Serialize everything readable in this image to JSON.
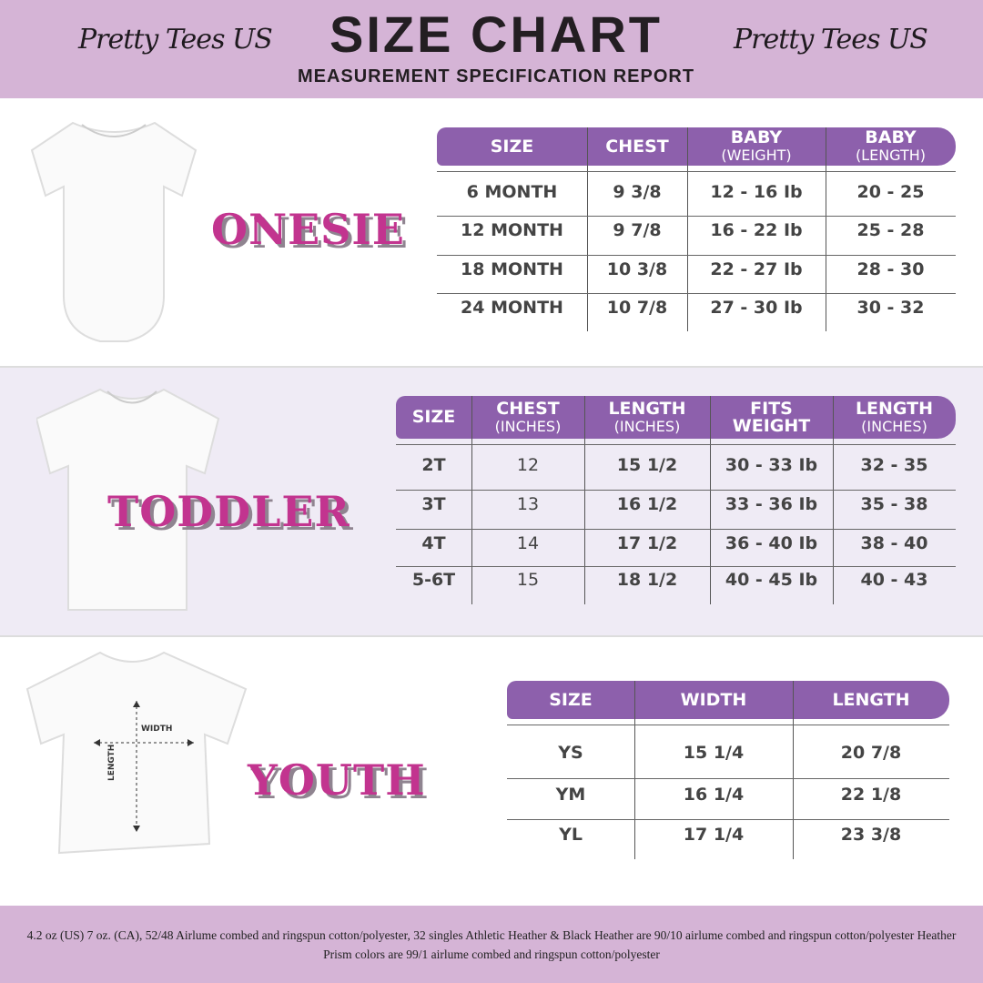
{
  "header": {
    "brand_left": "Pretty Tees US",
    "brand_right": "Pretty Tees US",
    "title": "SIZE CHART",
    "subtitle": "MEASUREMENT SPECIFICATION REPORT"
  },
  "onesie": {
    "label": "ONESIE",
    "columns": [
      {
        "main": "SIZE",
        "sub": ""
      },
      {
        "main": "CHEST",
        "sub": ""
      },
      {
        "main": "BABY",
        "sub": "(WEIGHT)"
      },
      {
        "main": "BABY",
        "sub": "(LENGTH)"
      }
    ],
    "rows": [
      [
        "6 MONTH",
        "9 3/8",
        "12 - 16 Ib",
        "20 - 25"
      ],
      [
        "12 MONTH",
        "9 7/8",
        "16 - 22 Ib",
        "25 - 28"
      ],
      [
        "18  MONTH",
        "10 3/8",
        "22 - 27 Ib",
        "28 - 30"
      ],
      [
        "24 MONTH",
        "10 7/8",
        "27 - 30 Ib",
        "30 - 32"
      ]
    ]
  },
  "toddler": {
    "label": "TODDLER",
    "columns": [
      {
        "main": "SIZE",
        "sub": ""
      },
      {
        "main": "CHEST",
        "sub": "(INCHES)"
      },
      {
        "main": "LENGTH",
        "sub": "(INCHES)"
      },
      {
        "main": "FITS",
        "sub": "WEIGHT"
      },
      {
        "main": "LENGTH",
        "sub": "(INCHES)"
      }
    ],
    "rows": [
      [
        "2T",
        "12",
        "15 1/2",
        "30 - 33  Ib",
        "32 - 35"
      ],
      [
        "3T",
        "13",
        "16 1/2",
        "33 - 36 Ib",
        "35 - 38"
      ],
      [
        "4T",
        "14",
        "17 1/2",
        "36 - 40 Ib",
        "38 - 40"
      ],
      [
        "5-6T",
        "15",
        "18 1/2",
        "40 - 45 Ib",
        "40 - 43"
      ]
    ]
  },
  "youth": {
    "label": "YOUTH",
    "diagram_width": "WIDTH",
    "diagram_length": "LENGTH",
    "columns": [
      {
        "main": "SIZE",
        "sub": ""
      },
      {
        "main": "WIDTH",
        "sub": ""
      },
      {
        "main": "LENGTH",
        "sub": ""
      }
    ],
    "rows": [
      [
        "YS",
        "15 1/4",
        "20 7/8"
      ],
      [
        "YM",
        "16 1/4",
        "22 1/8"
      ],
      [
        "YL",
        "17 1/4",
        "23 3/8"
      ]
    ]
  },
  "footer": {
    "text": "4.2 oz (US) 7 oz. (CA), 52/48 Airlume combed and ringspun cotton/polyester, 32 singles Athletic Heather & Black Heather are 90/10 airlume combed and ringspun cotton/polyester Heather Prism colors are 99/1 airlume combed and ringspun cotton/polyester"
  },
  "colors": {
    "header_bg": "#d5b4d6",
    "table_header": "#8d60ac",
    "category_text": "#c2348f",
    "section_alt_bg": "#efebf5"
  }
}
